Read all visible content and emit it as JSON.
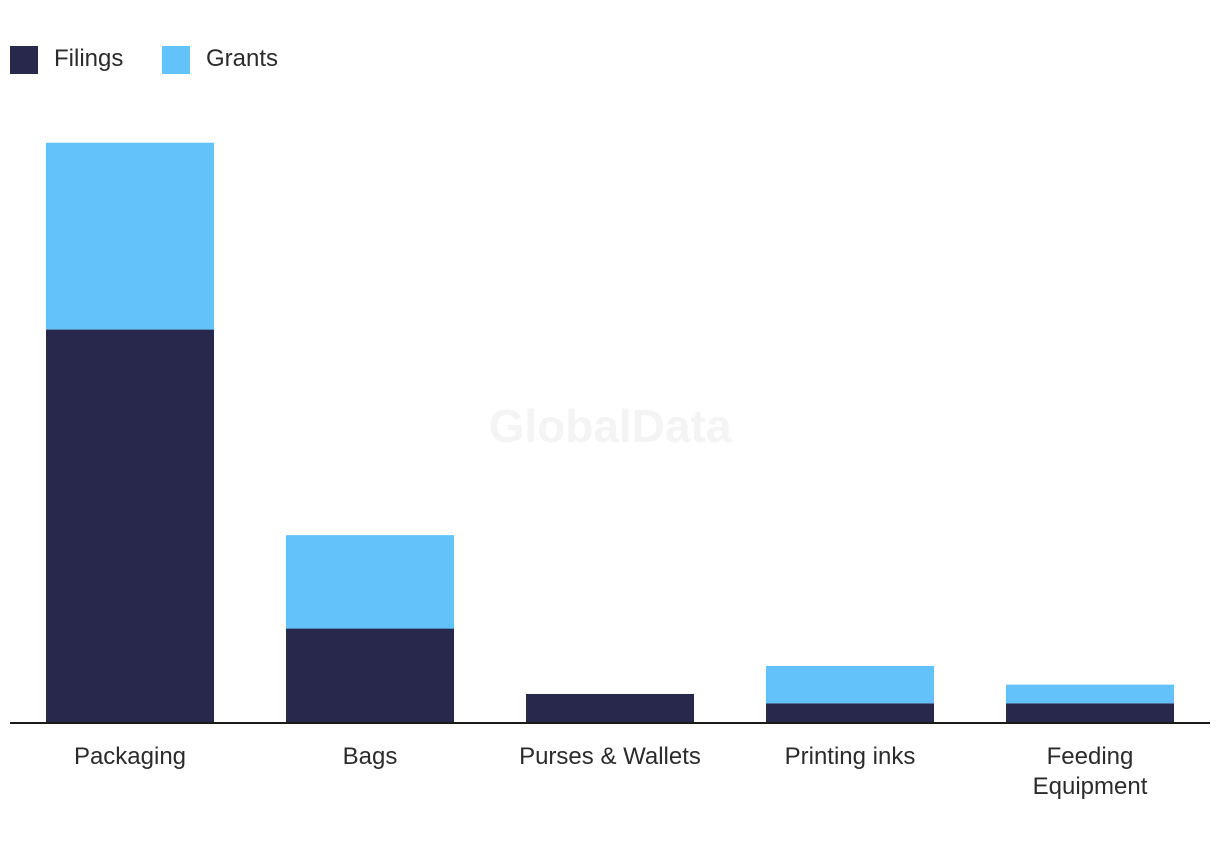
{
  "chart_data": {
    "type": "bar",
    "stacked": true,
    "categories": [
      "Packaging",
      "Bags",
      "Purses & Wallets",
      "Printing inks",
      "Feeding Equipment"
    ],
    "category_lines": [
      [
        "Packaging"
      ],
      [
        "Bags"
      ],
      [
        "Purses & Wallets"
      ],
      [
        "Printing inks"
      ],
      [
        "Feeding",
        "Equipment"
      ]
    ],
    "series": [
      {
        "name": "Filings",
        "color": "#27284c",
        "values": [
          21,
          5,
          1.5,
          1,
          1
        ]
      },
      {
        "name": "Grants",
        "color": "#62c2f9",
        "values": [
          10,
          5,
          0,
          2,
          1
        ]
      }
    ],
    "ylim": [
      0,
      32
    ],
    "grid": false,
    "legend_position": "top-left",
    "title": "",
    "xlabel": "",
    "ylabel": ""
  },
  "watermark": "GlobalData"
}
